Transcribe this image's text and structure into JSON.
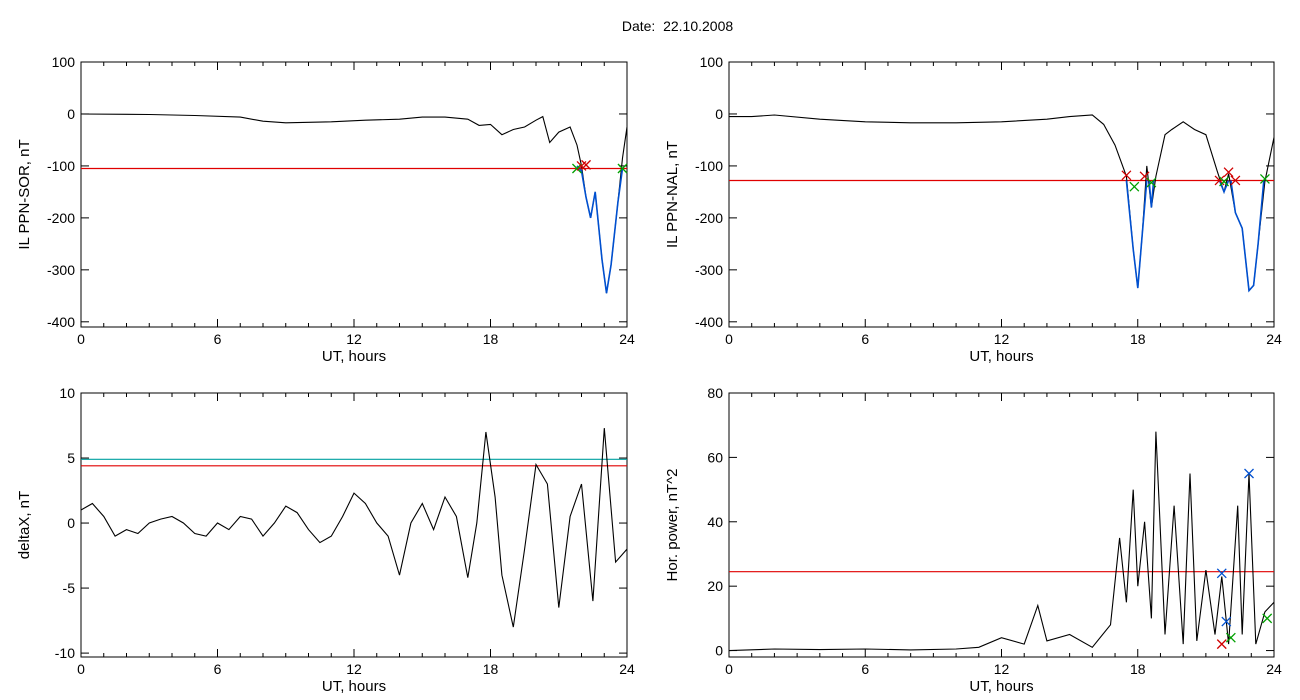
{
  "page_title": "Date:  22.10.2008",
  "colors": {
    "data": "#000000",
    "threshold": "#e00000",
    "threshold2": "#00a0a0",
    "highlight": "#0050d0",
    "mark_start": "#00a000",
    "mark_end": "#d00000",
    "mark_peak": "#0050d0"
  },
  "chart_data": [
    {
      "type": "line",
      "ylabel": "IL PPN-SOR, nT",
      "xlabel": "UT, hours",
      "xlim": [
        0,
        24
      ],
      "ylim": [
        -410,
        100
      ],
      "xticks": [
        0,
        6,
        12,
        18,
        24
      ],
      "yticks": [
        100,
        0,
        -100,
        -200,
        -300,
        -400
      ],
      "thresholds": [
        {
          "y": -105,
          "color": "threshold"
        }
      ],
      "series": [
        {
          "values": [
            [
              0,
              0
            ],
            [
              3,
              -1
            ],
            [
              5,
              -3
            ],
            [
              7,
              -6
            ],
            [
              8,
              -14
            ],
            [
              9,
              -17
            ],
            [
              11,
              -15
            ],
            [
              12.5,
              -12
            ],
            [
              14,
              -10
            ],
            [
              15,
              -6
            ],
            [
              16,
              -6
            ],
            [
              17,
              -10
            ],
            [
              17.5,
              -22
            ],
            [
              18,
              -20
            ],
            [
              18.5,
              -40
            ],
            [
              19,
              -30
            ],
            [
              19.5,
              -25
            ],
            [
              20,
              -12
            ],
            [
              20.3,
              -5
            ],
            [
              20.6,
              -55
            ],
            [
              21,
              -35
            ],
            [
              21.5,
              -25
            ],
            [
              21.8,
              -60
            ],
            [
              22,
              -100
            ],
            [
              22.2,
              -160
            ],
            [
              22.4,
              -200
            ],
            [
              22.6,
              -150
            ],
            [
              22.9,
              -280
            ],
            [
              23.1,
              -345
            ],
            [
              23.3,
              -290
            ],
            [
              23.6,
              -170
            ],
            [
              23.8,
              -85
            ],
            [
              24,
              -25
            ]
          ]
        }
      ],
      "highlight": [
        {
          "values": [
            [
              21.8,
              -100
            ],
            [
              22,
              -110
            ],
            [
              22.2,
              -160
            ],
            [
              22.4,
              -200
            ],
            [
              22.6,
              -150
            ],
            [
              22.9,
              -280
            ],
            [
              23.1,
              -345
            ],
            [
              23.3,
              -290
            ],
            [
              23.6,
              -170
            ],
            [
              23.8,
              -105
            ]
          ]
        }
      ],
      "markers": [
        {
          "x": 21.8,
          "y": -105,
          "kind": "mark_start"
        },
        {
          "x": 22,
          "y": -100,
          "kind": "mark_end"
        },
        {
          "x": 22.2,
          "y": -98,
          "kind": "mark_end"
        },
        {
          "x": 23.8,
          "y": -105,
          "kind": "mark_start"
        }
      ]
    },
    {
      "type": "line",
      "ylabel": "IL PPN-NAL, nT",
      "xlabel": "UT, hours",
      "xlim": [
        0,
        24
      ],
      "ylim": [
        -410,
        100
      ],
      "xticks": [
        0,
        6,
        12,
        18,
        24
      ],
      "yticks": [
        100,
        0,
        -100,
        -200,
        -300,
        -400
      ],
      "thresholds": [
        {
          "y": -128,
          "color": "threshold"
        }
      ],
      "series": [
        {
          "values": [
            [
              0,
              -5
            ],
            [
              1,
              -5
            ],
            [
              2,
              -2
            ],
            [
              4,
              -10
            ],
            [
              6,
              -15
            ],
            [
              8,
              -17
            ],
            [
              10,
              -17
            ],
            [
              12,
              -15
            ],
            [
              14,
              -10
            ],
            [
              15,
              -5
            ],
            [
              16,
              -2
            ],
            [
              16.5,
              -20
            ],
            [
              17,
              -60
            ],
            [
              17.5,
              -120
            ],
            [
              17.8,
              -260
            ],
            [
              18,
              -335
            ],
            [
              18.2,
              -230
            ],
            [
              18.4,
              -100
            ],
            [
              18.6,
              -180
            ],
            [
              18.8,
              -120
            ],
            [
              19.2,
              -40
            ],
            [
              19.5,
              -30
            ],
            [
              20,
              -15
            ],
            [
              20.5,
              -30
            ],
            [
              21,
              -40
            ],
            [
              21.5,
              -110
            ],
            [
              21.8,
              -150
            ],
            [
              22,
              -115
            ],
            [
              22.3,
              -190
            ],
            [
              22.6,
              -220
            ],
            [
              22.9,
              -340
            ],
            [
              23.1,
              -330
            ],
            [
              23.3,
              -250
            ],
            [
              23.6,
              -130
            ],
            [
              24,
              -45
            ]
          ]
        }
      ],
      "highlight": [
        {
          "values": [
            [
              17.5,
              -128
            ],
            [
              17.8,
              -260
            ],
            [
              18,
              -335
            ],
            [
              18.2,
              -230
            ],
            [
              18.4,
              -128
            ]
          ]
        },
        {
          "values": [
            [
              18.5,
              -128
            ],
            [
              18.6,
              -180
            ],
            [
              18.7,
              -128
            ]
          ]
        },
        {
          "values": [
            [
              21.6,
              -128
            ],
            [
              21.8,
              -150
            ],
            [
              22,
              -128
            ]
          ]
        },
        {
          "values": [
            [
              22.1,
              -128
            ],
            [
              22.3,
              -190
            ],
            [
              22.6,
              -220
            ],
            [
              22.9,
              -340
            ],
            [
              23.1,
              -330
            ],
            [
              23.3,
              -250
            ],
            [
              23.55,
              -128
            ]
          ]
        }
      ],
      "markers": [
        {
          "x": 17.5,
          "y": -118,
          "kind": "mark_end"
        },
        {
          "x": 17.85,
          "y": -140,
          "kind": "mark_start"
        },
        {
          "x": 18.3,
          "y": -120,
          "kind": "mark_end"
        },
        {
          "x": 18.6,
          "y": -132,
          "kind": "mark_start"
        },
        {
          "x": 21.6,
          "y": -128,
          "kind": "mark_end"
        },
        {
          "x": 21.8,
          "y": -130,
          "kind": "mark_start"
        },
        {
          "x": 22,
          "y": -112,
          "kind": "mark_end"
        },
        {
          "x": 22.3,
          "y": -128,
          "kind": "mark_end"
        },
        {
          "x": 23.6,
          "y": -125,
          "kind": "mark_start"
        }
      ]
    },
    {
      "type": "line",
      "ylabel": "deltaX, nT",
      "xlabel": "UT, hours",
      "xlim": [
        0,
        24
      ],
      "ylim": [
        -10.3,
        10
      ],
      "xticks": [
        0,
        6,
        12,
        18,
        24
      ],
      "yticks": [
        10,
        5,
        0,
        -5,
        -10
      ],
      "thresholds": [
        {
          "y": 4.9,
          "color": "threshold2"
        },
        {
          "y": 4.4,
          "color": "threshold"
        }
      ],
      "series": [
        {
          "values": [
            [
              0,
              1
            ],
            [
              0.5,
              1.5
            ],
            [
              1,
              0.5
            ],
            [
              1.5,
              -1
            ],
            [
              2,
              -0.5
            ],
            [
              2.5,
              -0.8
            ],
            [
              3,
              0
            ],
            [
              3.5,
              0.3
            ],
            [
              4,
              0.5
            ],
            [
              4.5,
              0
            ],
            [
              5,
              -0.8
            ],
            [
              5.5,
              -1
            ],
            [
              6,
              0
            ],
            [
              6.5,
              -0.5
            ],
            [
              7,
              0.5
            ],
            [
              7.5,
              0.3
            ],
            [
              8,
              -1
            ],
            [
              8.5,
              0
            ],
            [
              9,
              1.3
            ],
            [
              9.5,
              0.8
            ],
            [
              10,
              -0.5
            ],
            [
              10.5,
              -1.5
            ],
            [
              11,
              -1
            ],
            [
              11.5,
              0.5
            ],
            [
              12,
              2.3
            ],
            [
              12.5,
              1.5
            ],
            [
              13,
              0
            ],
            [
              13.5,
              -1
            ],
            [
              14,
              -4
            ],
            [
              14.5,
              0
            ],
            [
              15,
              1.5
            ],
            [
              15.5,
              -0.5
            ],
            [
              16,
              2
            ],
            [
              16.5,
              0.5
            ],
            [
              17,
              -4.2
            ],
            [
              17.4,
              0
            ],
            [
              17.8,
              7
            ],
            [
              18.2,
              2
            ],
            [
              18.5,
              -4
            ],
            [
              19,
              -8
            ],
            [
              19.5,
              -2
            ],
            [
              20,
              4.5
            ],
            [
              20.5,
              3
            ],
            [
              21,
              -6.5
            ],
            [
              21.5,
              0.5
            ],
            [
              22,
              3
            ],
            [
              22.5,
              -6
            ],
            [
              23,
              7.3
            ],
            [
              23.5,
              -3
            ],
            [
              24,
              -2
            ]
          ]
        }
      ],
      "highlight": [],
      "markers": []
    },
    {
      "type": "line",
      "ylabel": "Hor. power, nT^2",
      "xlabel": "UT, hours",
      "xlim": [
        0,
        24
      ],
      "ylim": [
        -2,
        80
      ],
      "xticks": [
        0,
        6,
        12,
        18,
        24
      ],
      "yticks": [
        80,
        60,
        40,
        20,
        0
      ],
      "thresholds": [
        {
          "y": 24.5,
          "color": "threshold"
        }
      ],
      "series": [
        {
          "values": [
            [
              0,
              0
            ],
            [
              2,
              0.5
            ],
            [
              4,
              0.3
            ],
            [
              6,
              0.5
            ],
            [
              8,
              0.2
            ],
            [
              10,
              0.5
            ],
            [
              11,
              1
            ],
            [
              12,
              4
            ],
            [
              13,
              2
            ],
            [
              13.6,
              14
            ],
            [
              14,
              3
            ],
            [
              15,
              5
            ],
            [
              16,
              1
            ],
            [
              16.8,
              8
            ],
            [
              17.2,
              35
            ],
            [
              17.5,
              15
            ],
            [
              17.8,
              50
            ],
            [
              18,
              20
            ],
            [
              18.3,
              40
            ],
            [
              18.6,
              10
            ],
            [
              18.8,
              68
            ],
            [
              19.2,
              5
            ],
            [
              19.6,
              45
            ],
            [
              20,
              2
            ],
            [
              20.3,
              55
            ],
            [
              20.6,
              3
            ],
            [
              21,
              25
            ],
            [
              21.4,
              5
            ],
            [
              21.7,
              23
            ],
            [
              22,
              2
            ],
            [
              22.4,
              45
            ],
            [
              22.6,
              5
            ],
            [
              22.9,
              55
            ],
            [
              23.2,
              2
            ],
            [
              23.6,
              12
            ],
            [
              24,
              15
            ]
          ]
        }
      ],
      "highlight": [],
      "markers": [
        {
          "x": 21.7,
          "y": 24,
          "kind": "mark_peak"
        },
        {
          "x": 21.9,
          "y": 9,
          "kind": "mark_peak"
        },
        {
          "x": 21.7,
          "y": 2,
          "kind": "mark_end"
        },
        {
          "x": 22.1,
          "y": 4,
          "kind": "mark_start"
        },
        {
          "x": 22.9,
          "y": 55,
          "kind": "mark_peak"
        },
        {
          "x": 23.7,
          "y": 10,
          "kind": "mark_start"
        }
      ]
    }
  ]
}
